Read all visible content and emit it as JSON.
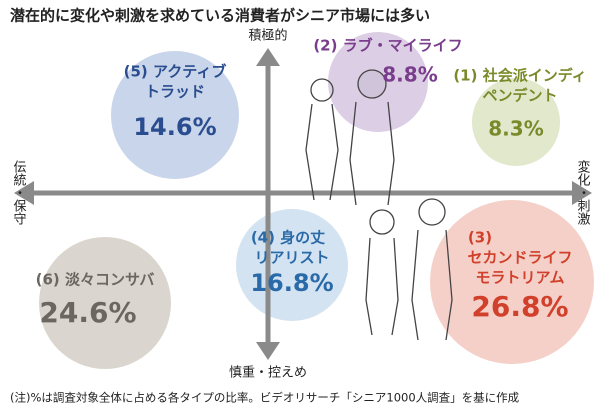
{
  "title": "潜在的に変化や刺激を求めている消費者がシニア市場には多い",
  "axes": {
    "top": "積極的",
    "bottom": "慎重・控えめ",
    "left": "伝統・保守",
    "right": "変化・刺激"
  },
  "segments": [
    {
      "lines": [
        "(5) アクティブ",
        "トラッド"
      ],
      "share": "14.6%"
    },
    {
      "lines": [
        "(2) ラブ・マイライフ"
      ],
      "share": "8.8%"
    },
    {
      "lines": [
        "(1) 社会派インディ",
        "ペンデント"
      ],
      "share": "8.3%"
    },
    {
      "lines": [
        "(4) 身の丈",
        "リアリスト"
      ],
      "share": "16.8%"
    },
    {
      "lines": [
        "(6) 淡々コンサバ"
      ],
      "share": "24.6%"
    },
    {
      "lines": [
        "(3)",
        "セカンドライフ",
        "モラトリアム"
      ],
      "share": "26.8%"
    }
  ],
  "footnote": "(注)%は調査対象全体に占める各タイプの比率。ビデオリサーチ「シニア1000人調査」を基に作成"
}
